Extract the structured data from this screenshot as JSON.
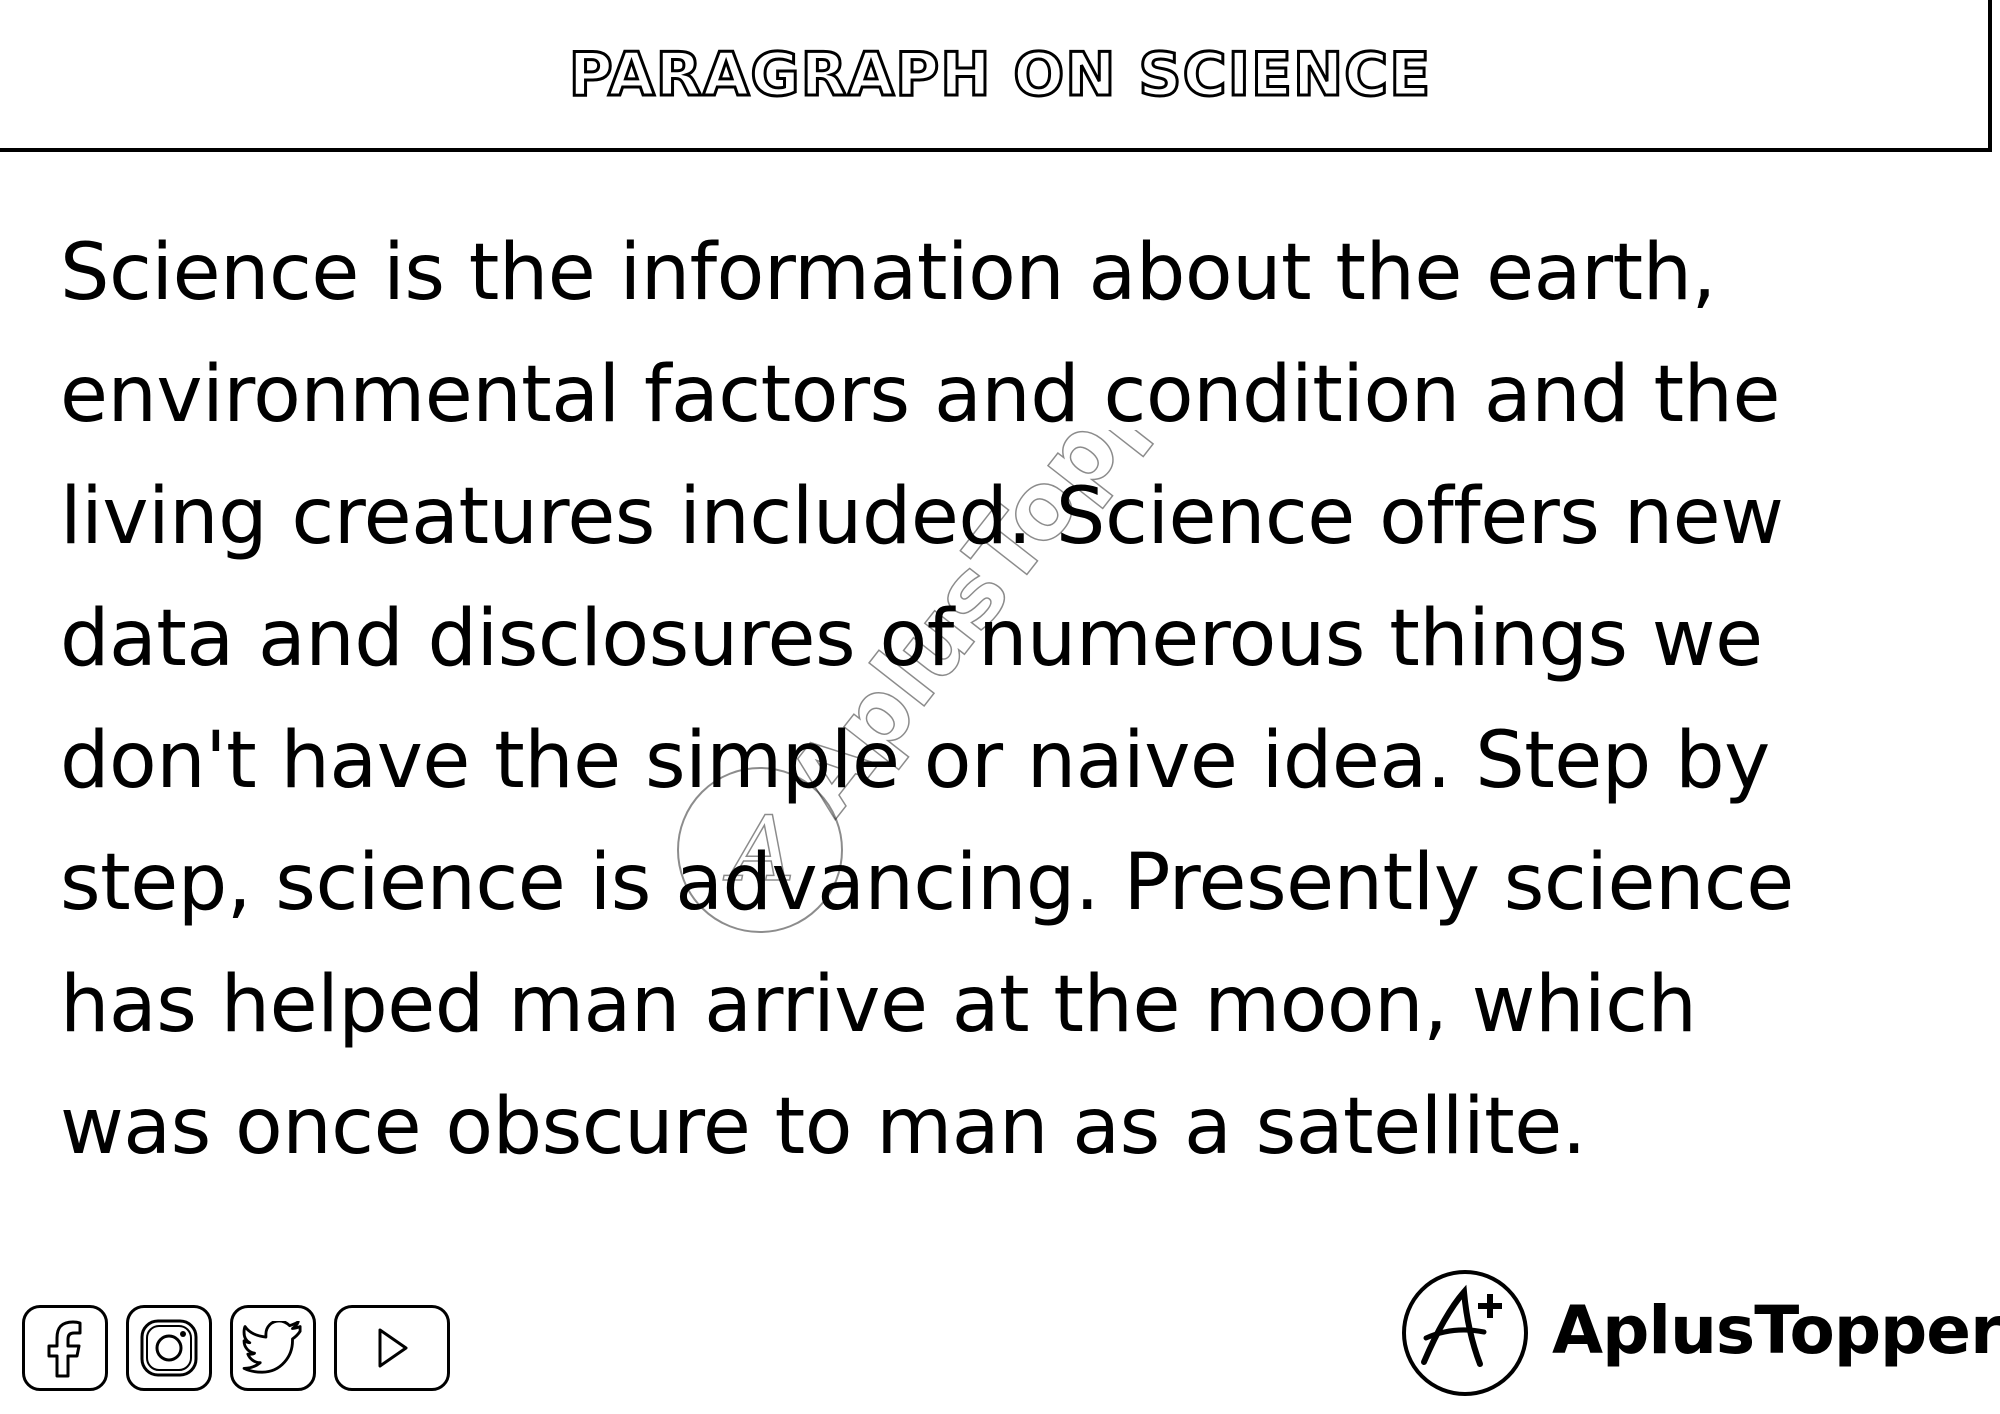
{
  "header": {
    "title": "PARAGRAPH ON SCIENCE"
  },
  "paragraph": {
    "lines": [
      "Science is the information about the earth,",
      "environmental factors and condition and the",
      "living creatures included. Science offers new",
      "data and disclosures of numerous things we",
      "don't have the simple or naive idea. Step by",
      "step, science is advancing. Presently science",
      "has helped man arrive at the moon, which",
      "was once obscure to man as a satellite."
    ]
  },
  "watermark": {
    "text": "AplusTopper"
  },
  "social_icons": [
    "facebook-icon",
    "instagram-icon",
    "twitter-icon",
    "youtube-icon"
  ],
  "brand": {
    "name": "AplusTopper"
  }
}
